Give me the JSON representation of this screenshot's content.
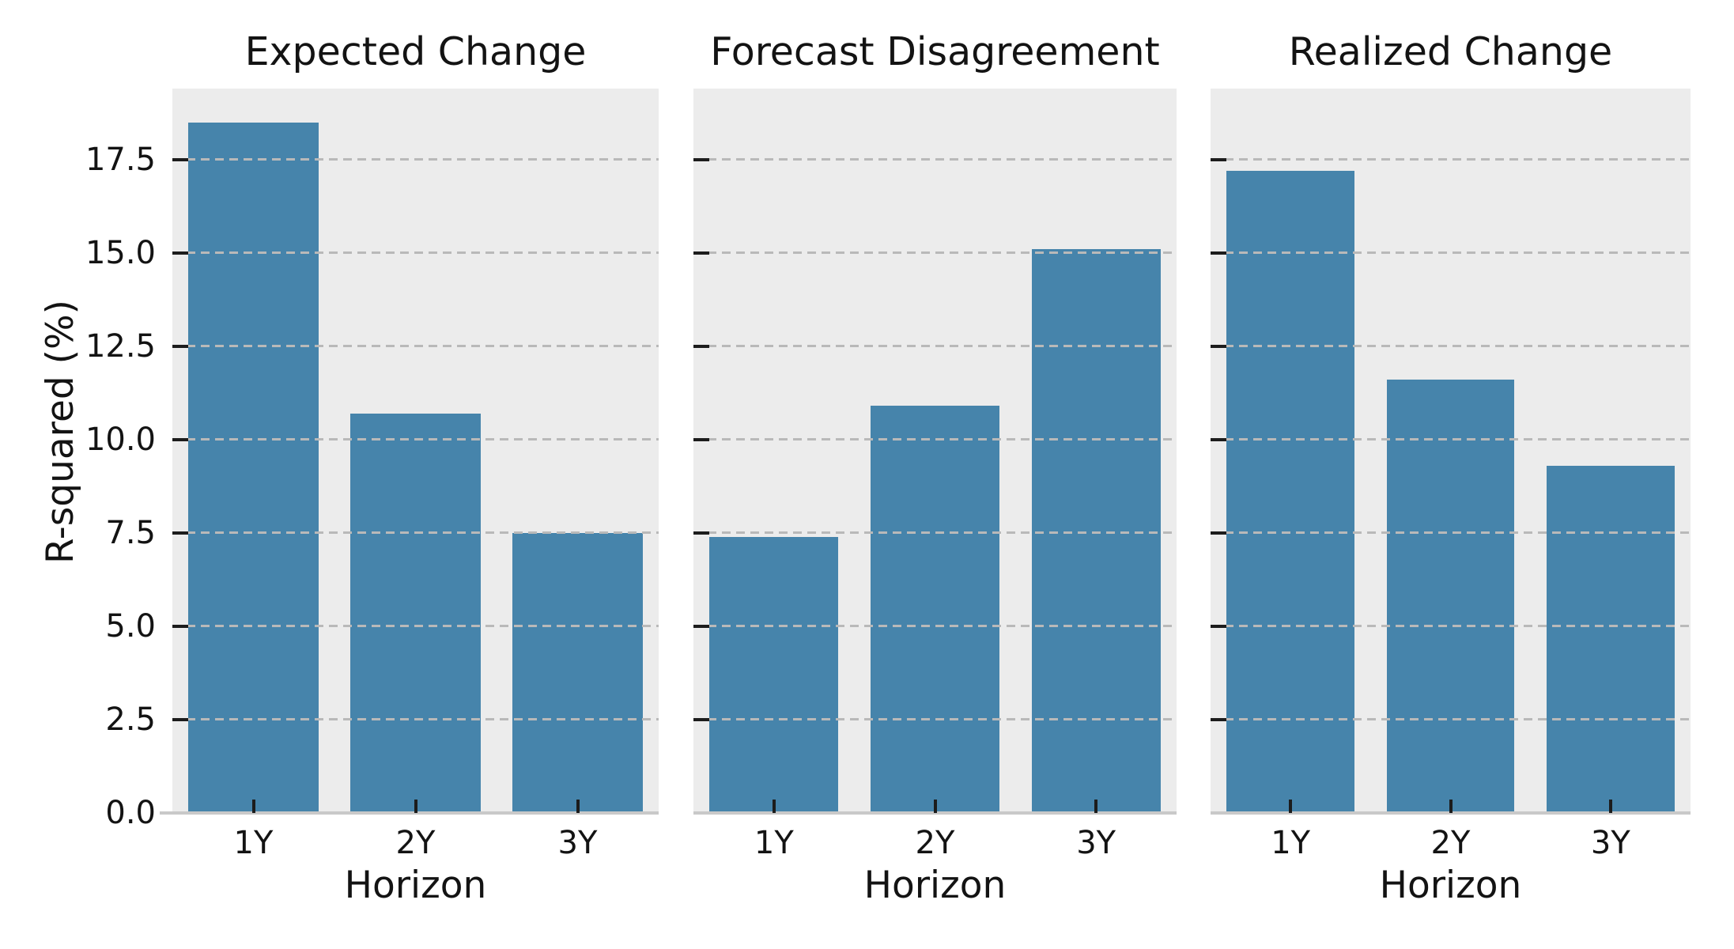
{
  "figure": {
    "background": "#ffffff",
    "plot_background": "#ececec",
    "bar_color": "#4684ab",
    "grid_color": "#b9b9b9",
    "baseline_color": "#c9c9c9",
    "tick_color": "#1c1c1c",
    "text_color": "#131313"
  },
  "chart_data": {
    "type": "bar",
    "categories": [
      "1Y",
      "2Y",
      "3Y"
    ],
    "xlabel": "Horizon",
    "ylabel": "R-squared (%)",
    "ylim": [
      0,
      19.4
    ],
    "yticks": [
      0.0,
      2.5,
      5.0,
      7.5,
      10.0,
      12.5,
      15.0,
      17.5
    ],
    "ytick_labels": [
      "0.0",
      "2.5",
      "5.0",
      "7.5",
      "10.0",
      "12.5",
      "15.0",
      "17.5"
    ],
    "grid": true,
    "grid_style": "dashed",
    "legend": null,
    "panels": [
      {
        "title": "Expected Change",
        "values": [
          18.5,
          10.7,
          7.5
        ]
      },
      {
        "title": "Forecast Disagreement",
        "values": [
          7.4,
          10.9,
          15.1
        ]
      },
      {
        "title": "Realized Change",
        "values": [
          17.2,
          11.6,
          9.3
        ]
      }
    ]
  }
}
